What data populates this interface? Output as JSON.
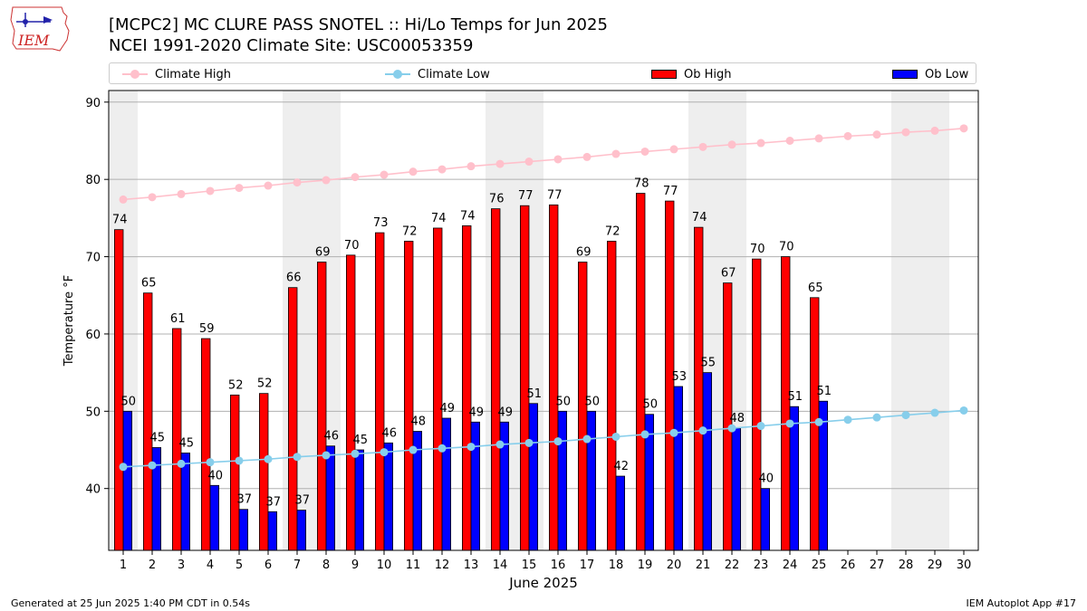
{
  "header": {
    "title": "[MCPC2] MC CLURE PASS SNOTEL :: Hi/Lo Temps for Jun 2025",
    "subtitle": "NCEI 1991-2020 Climate Site: USC00053359",
    "logo_text": "IEM"
  },
  "legend": {
    "climate_high": "Climate High",
    "climate_low": "Climate Low",
    "ob_high": "Ob High",
    "ob_low": "Ob Low"
  },
  "footer": {
    "generated": "Generated at 25 Jun 2025 1:40 PM CDT in 0.54s",
    "app": "IEM Autoplot App #17"
  },
  "colors": {
    "climate_high": "#ffc0cb",
    "climate_low": "#87ceeb",
    "ob_high": "#ff0000",
    "ob_low": "#0000ff",
    "weekend": "#eeeeee",
    "grid": "#b0b0b0"
  },
  "chart_data": {
    "type": "bar",
    "xlabel": "June 2025",
    "ylabel": "Temperature °F",
    "ylim": [
      32,
      91.5
    ],
    "yticks": [
      40,
      50,
      60,
      70,
      80,
      90
    ],
    "grid": "horizontal",
    "legend_position": "top",
    "categories": [
      1,
      2,
      3,
      4,
      5,
      6,
      7,
      8,
      9,
      10,
      11,
      12,
      13,
      14,
      15,
      16,
      17,
      18,
      19,
      20,
      21,
      22,
      23,
      24,
      25,
      26,
      27,
      28,
      29,
      30
    ],
    "shaded_days": [
      1,
      7,
      8,
      14,
      15,
      21,
      22,
      28,
      29
    ],
    "series": [
      {
        "name": "Ob High",
        "kind": "bar",
        "values": [
          73.5,
          65.3,
          60.7,
          59.4,
          52.1,
          52.3,
          66,
          69.3,
          70.2,
          73.1,
          72,
          73.7,
          74,
          76.2,
          76.6,
          76.7,
          69.3,
          72,
          78.2,
          77.2,
          73.8,
          66.6,
          69.7,
          70,
          64.7,
          null,
          null,
          null,
          null,
          null
        ],
        "labels": [
          74,
          65,
          61,
          59,
          52,
          52,
          66,
          69,
          70,
          73,
          72,
          74,
          74,
          76,
          77,
          77,
          69,
          72,
          78,
          77,
          74,
          67,
          70,
          70,
          65,
          null,
          null,
          null,
          null,
          null
        ]
      },
      {
        "name": "Ob Low",
        "kind": "bar",
        "values": [
          50,
          45.3,
          44.6,
          40.4,
          37.3,
          37,
          37.2,
          45.5,
          45,
          45.9,
          47.4,
          49.1,
          48.6,
          48.6,
          51,
          50,
          50,
          41.6,
          49.6,
          53.2,
          55,
          47.8,
          40,
          50.6,
          51.3,
          null,
          null,
          null,
          null,
          null
        ],
        "labels": [
          50,
          45,
          45,
          40,
          37,
          37,
          37,
          46,
          45,
          46,
          48,
          49,
          49,
          49,
          51,
          50,
          50,
          42,
          50,
          53,
          55,
          48,
          40,
          51,
          51,
          null,
          null,
          null,
          null,
          null
        ]
      },
      {
        "name": "Climate High",
        "kind": "line",
        "values": [
          77.4,
          77.7,
          78.1,
          78.5,
          78.9,
          79.2,
          79.6,
          79.9,
          80.3,
          80.6,
          81,
          81.3,
          81.7,
          82,
          82.3,
          82.6,
          82.9,
          83.3,
          83.6,
          83.9,
          84.2,
          84.5,
          84.7,
          85,
          85.3,
          85.6,
          85.8,
          86.1,
          86.3,
          86.6
        ]
      },
      {
        "name": "Climate Low",
        "kind": "line",
        "values": [
          42.8,
          43,
          43.2,
          43.4,
          43.6,
          43.8,
          44.1,
          44.3,
          44.5,
          44.7,
          45,
          45.2,
          45.4,
          45.7,
          45.9,
          46.1,
          46.4,
          46.7,
          47,
          47.2,
          47.5,
          47.8,
          48.1,
          48.4,
          48.6,
          48.9,
          49.2,
          49.5,
          49.8,
          50.1
        ]
      }
    ]
  }
}
